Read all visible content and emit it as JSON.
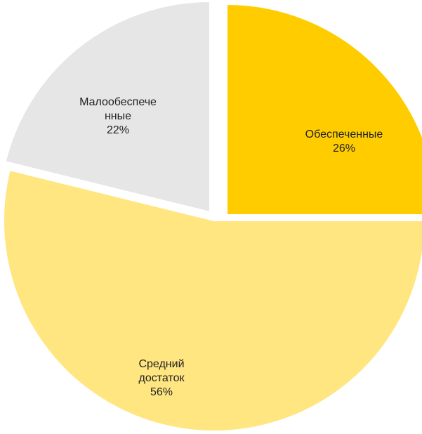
{
  "chart_data": {
    "type": "pie",
    "title": "",
    "slices": [
      {
        "name": "Обеспеченные",
        "value": 26,
        "color": "#FFCC00",
        "label_lines": [
          "Обеспеченные",
          "26%"
        ]
      },
      {
        "name": "Средний достаток",
        "value": 56,
        "color": "#FFE680",
        "label_lines": [
          "Средний",
          "достаток",
          "56%"
        ]
      },
      {
        "name": "Малообеспеченные",
        "value": 22,
        "color": "#E6E6E6",
        "label_lines": [
          "Малообеспече",
          "нные",
          "22%"
        ]
      }
    ],
    "exploded": true,
    "legend": "none",
    "data_labels": "inside"
  }
}
